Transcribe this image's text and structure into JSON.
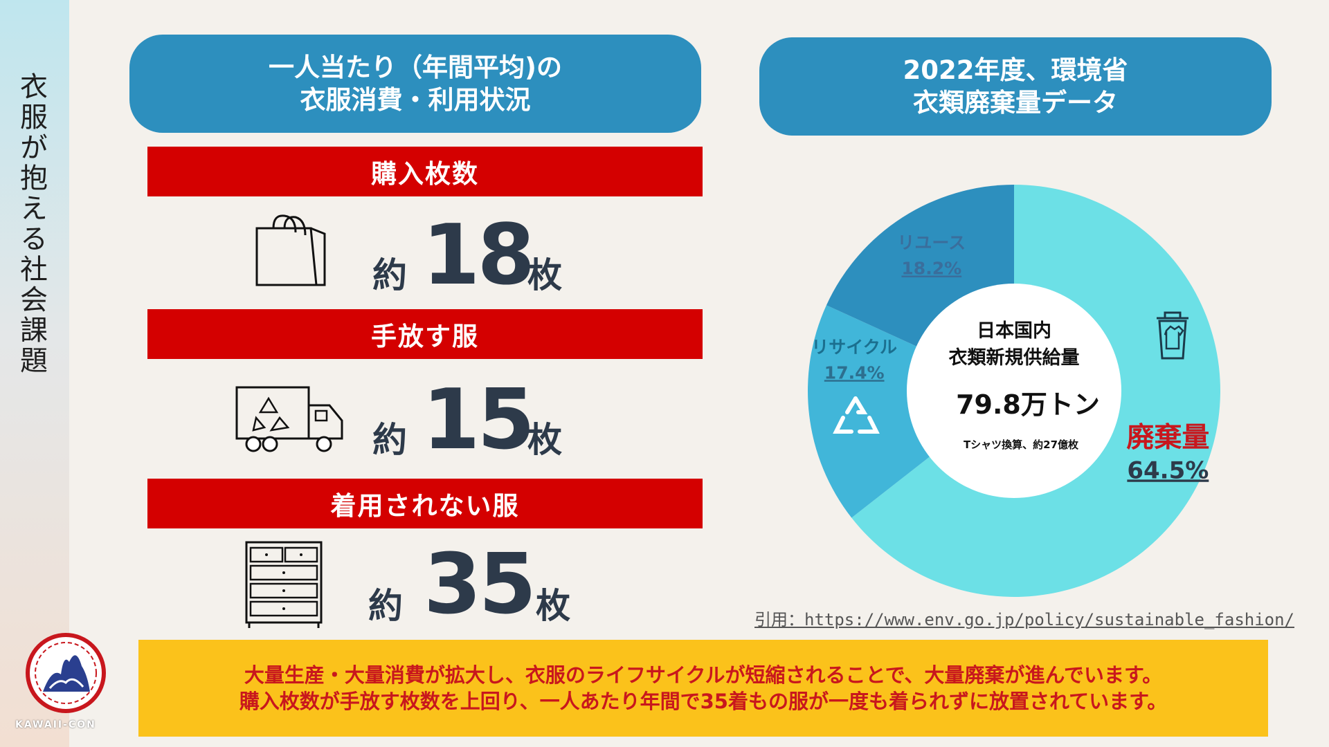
{
  "sidebar": {
    "title": "衣服が抱える社会課題",
    "logo_text": "KAWAII-CON"
  },
  "left_header": {
    "line1": "一人当たり（年間平均)の",
    "line2": "衣服消費・利用状況"
  },
  "stats": [
    {
      "label": "購入枚数",
      "prefix": "約",
      "value": "18",
      "unit": "枚",
      "icon": "shopping-bag-icon"
    },
    {
      "label": "手放す服",
      "prefix": "約",
      "value": "15",
      "unit": "枚",
      "icon": "recycle-truck-icon"
    },
    {
      "label": "着用されない服",
      "prefix": "約",
      "value": "35",
      "unit": "枚",
      "icon": "dresser-icon"
    }
  ],
  "right_header": {
    "line1": "2022年度、環境省",
    "line2": "衣類廃棄量データ"
  },
  "colors": {
    "accent_blue": "#2d8fbe",
    "red": "#d40000",
    "yellow": "#fbc21b",
    "reuse": "#2d8fbe",
    "recycle": "#41b6d9",
    "waste": "#6ce0e6"
  },
  "chart_data": {
    "type": "pie",
    "center": {
      "line1": "日本国内",
      "line2": "衣類新規供給量",
      "value": "79.8万トン",
      "note": "Tシャツ換算、約27億枚"
    },
    "slices": [
      {
        "name": "廃棄量",
        "value": 64.5,
        "label": "64.5%",
        "color": "#6ce0e6"
      },
      {
        "name": "リサイクル",
        "value": 17.4,
        "label": "17.4%",
        "color": "#41b6d9"
      },
      {
        "name": "リユース",
        "value": 18.2,
        "label": "18.2%",
        "color": "#2d8fbe"
      }
    ]
  },
  "source": "引用：https://www.env.go.jp/policy/sustainable_fashion/",
  "bottom": {
    "line1": "大量生産・大量消費が拡大し、衣服のライフサイクルが短縮されることで、大量廃棄が進んでいます。",
    "line2": "購入枚数が手放す枚数を上回り、一人あたり年間で35着もの服が一度も着られずに放置されています。"
  }
}
